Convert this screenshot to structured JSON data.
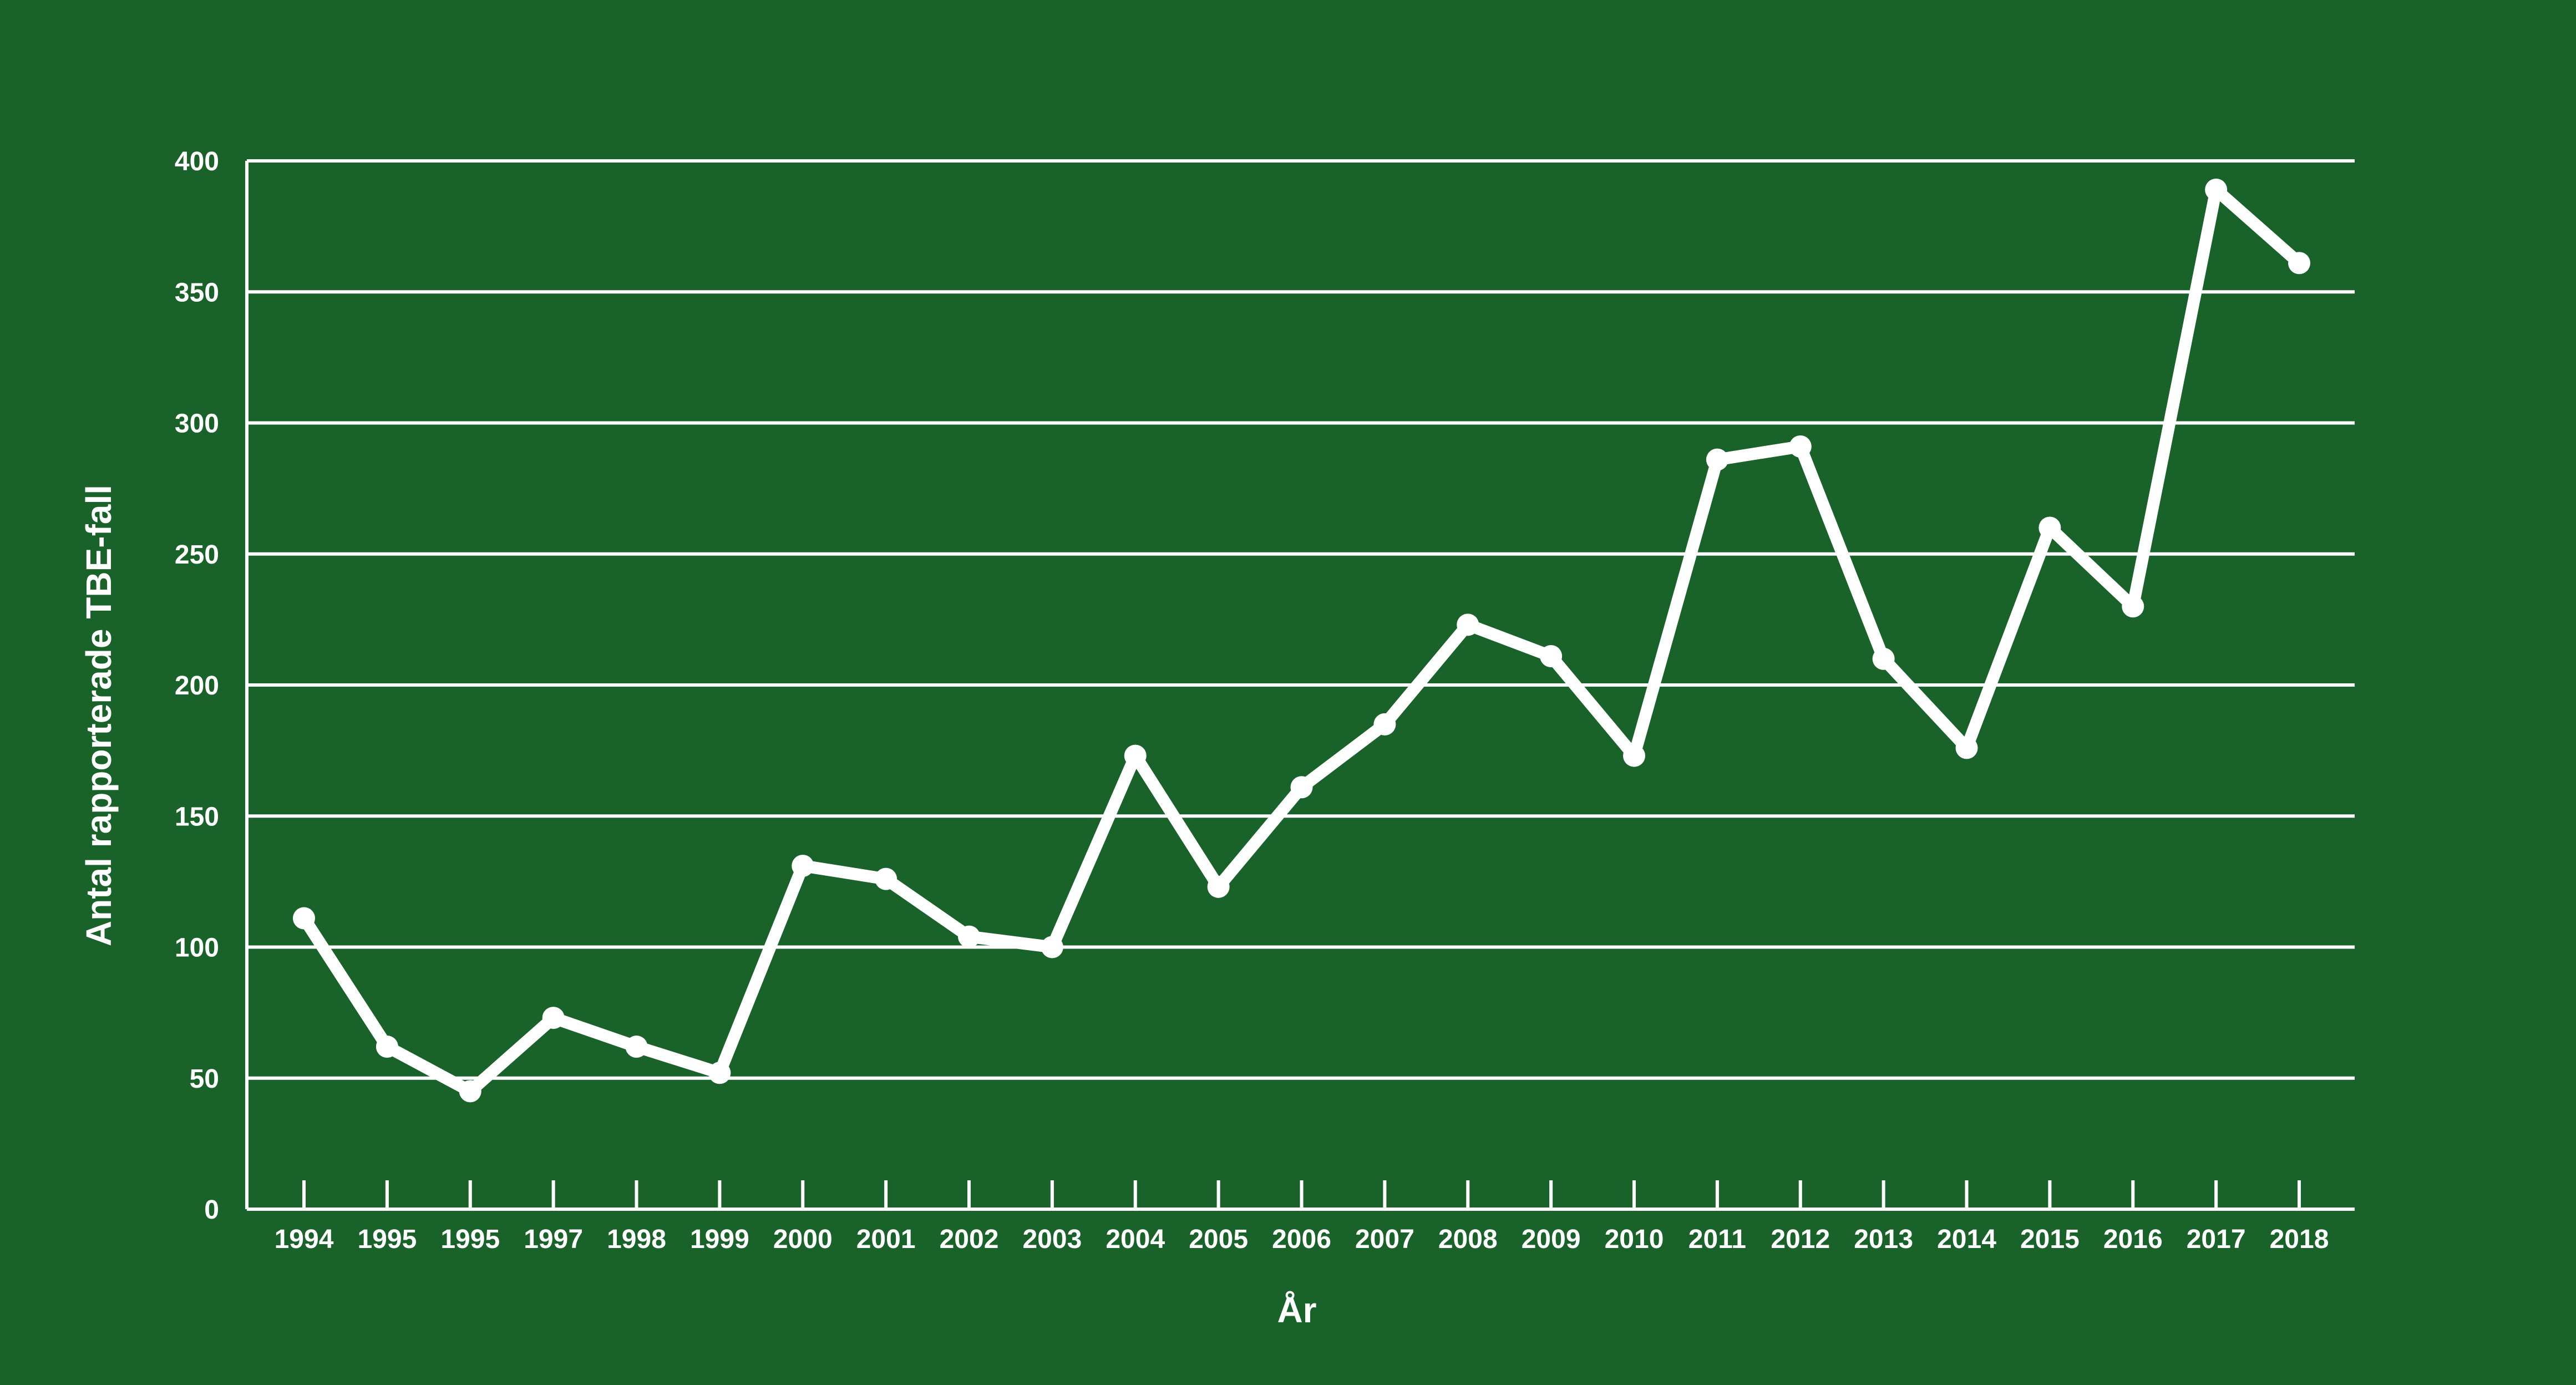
{
  "colors": {
    "background": "#196229",
    "foreground": "#ffffff"
  },
  "chart_data": {
    "type": "line",
    "title": "",
    "xlabel": "År",
    "ylabel": "Antal rapporterade TBE-fall",
    "categories": [
      "1994",
      "1995",
      "1995",
      "1997",
      "1998",
      "1999",
      "2000",
      "2001",
      "2002",
      "2003",
      "2004",
      "2005",
      "2006",
      "2007",
      "2008",
      "2009",
      "2010",
      "2011",
      "2012",
      "2013",
      "2014",
      "2015",
      "2016",
      "2017",
      "2018"
    ],
    "series": [
      {
        "values": [
          111,
          62,
          45,
          73,
          62,
          52,
          131,
          126,
          104,
          100,
          173,
          123,
          161,
          185,
          223,
          211,
          173,
          286,
          291,
          210,
          176,
          260,
          230,
          389,
          361
        ]
      }
    ],
    "ylim": [
      0,
      400
    ],
    "yticks": [
      0,
      50,
      100,
      150,
      200,
      250,
      300,
      350,
      400
    ],
    "grid": "horizontal",
    "legend": "none"
  }
}
